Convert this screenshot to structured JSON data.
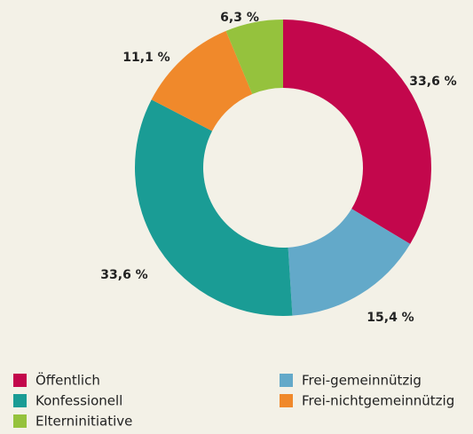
{
  "chart_data": {
    "type": "donut",
    "categories": [
      "Öffentlich",
      "Frei-gemeinnützig",
      "Konfessionell",
      "Frei-nichtgemeinnützig",
      "Elterninitiative"
    ],
    "values": [
      33.6,
      15.4,
      33.6,
      11.1,
      6.3
    ],
    "value_labels": [
      "33,6 %",
      "15,4 %",
      "33,6 %",
      "11,1 %",
      "6,3 %"
    ],
    "colors": [
      "#c3074c",
      "#63a9c9",
      "#1a9c95",
      "#f0892b",
      "#95c23d"
    ]
  }
}
